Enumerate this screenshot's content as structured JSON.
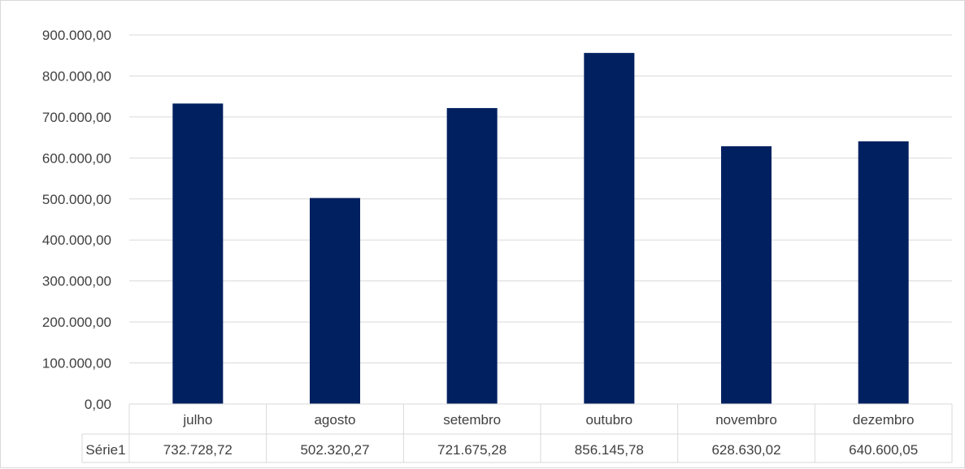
{
  "chart_data": {
    "type": "bar",
    "categories": [
      "julho",
      "agosto",
      "setembro",
      "outubro",
      "novembro",
      "dezembro"
    ],
    "series": [
      {
        "name": "Série1",
        "values": [
          732728.72,
          502320.27,
          721675.28,
          856145.78,
          628630.02,
          640600.05
        ],
        "labels": [
          "732.728,72",
          "502.320,27",
          "721.675,28",
          "856.145,78",
          "628.630,02",
          "640.600,05"
        ],
        "color": "#002060"
      }
    ],
    "y_ticks": [
      "0,00",
      "100.000,00",
      "200.000,00",
      "300.000,00",
      "400.000,00",
      "500.000,00",
      "600.000,00",
      "700.000,00",
      "800.000,00",
      "900.000,00"
    ],
    "ylim": [
      0,
      900000
    ],
    "grid": true,
    "legend": "data-table"
  }
}
